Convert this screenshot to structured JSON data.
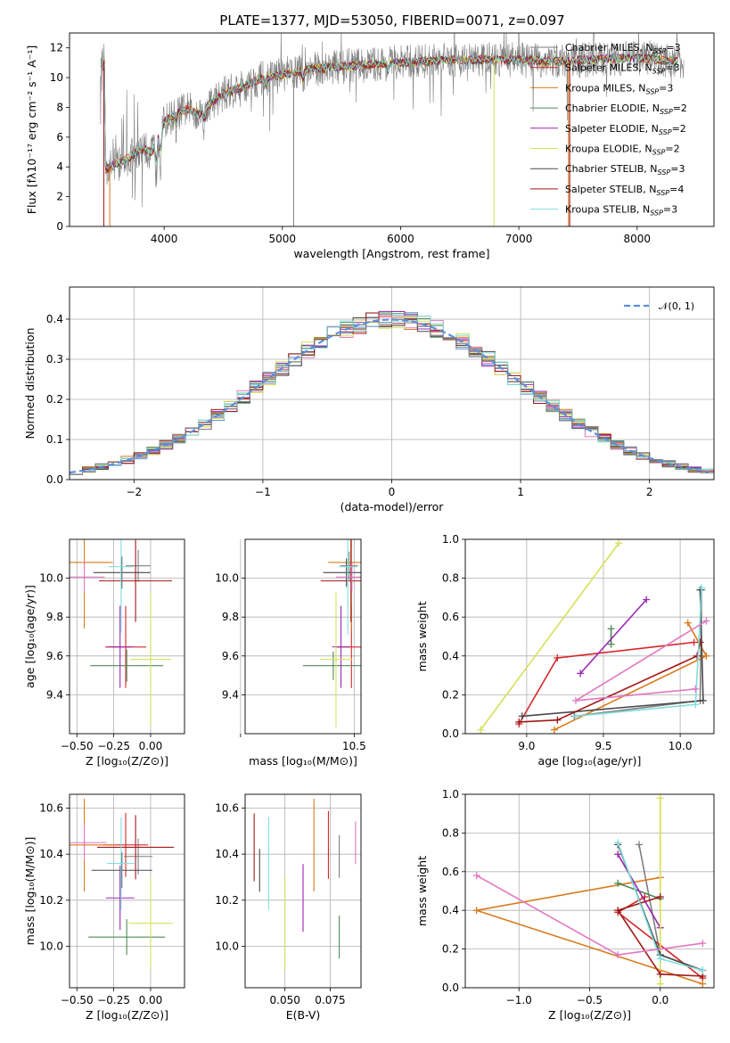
{
  "title": "PLATE=1377, MJD=53050, FIBERID=0071, z=0.097",
  "colors": {
    "chabrier_miles": "#7f7f7f",
    "salpeter_miles": "#d62728",
    "kroupa_miles": "#d97a1c",
    "chabrier_elodie": "#4f8a55",
    "salpeter_elodie": "#9a27b0",
    "kroupa_elodie": "#d4e157",
    "chabrier_stelib": "#4a4a4a",
    "salpeter_stelib": "#a01818",
    "kroupa_stelib": "#80dede",
    "normal": "#5b8fd9",
    "pink": "#e377c2",
    "grid": "#b0b0b0"
  },
  "chart_data": [
    {
      "id": "spectrum",
      "type": "line",
      "xlabel": "wavelength [Angstrom, rest frame]",
      "ylabel": "Flux [fλ10⁻¹⁷ erg cm⁻² s⁻¹ A⁻¹]",
      "xlim": [
        3200,
        8650
      ],
      "ylim": [
        0,
        13
      ],
      "xticks": [
        4000,
        5000,
        6000,
        7000,
        8000
      ],
      "yticks": [
        0,
        2,
        4,
        6,
        8,
        10,
        12
      ],
      "continuum": {
        "x": [
          3500,
          3600,
          3700,
          3800,
          3900,
          4000,
          4100,
          4200,
          4300,
          4400,
          4500,
          4600,
          4700,
          4800,
          4900,
          5000,
          5200,
          5400,
          5600,
          5800,
          6000,
          6200,
          6400,
          6600,
          6800,
          7000,
          7200,
          7400,
          7600,
          7800,
          8000,
          8200,
          8300
        ],
        "y": [
          3.8,
          4.2,
          4.6,
          5.2,
          5.0,
          7.0,
          7.6,
          7.9,
          7.6,
          8.3,
          8.9,
          9.2,
          9.5,
          9.9,
          10.0,
          10.2,
          10.5,
          10.7,
          10.8,
          10.9,
          11.0,
          11.1,
          11.2,
          11.2,
          11.2,
          11.2,
          11.1,
          11.1,
          11.2,
          11.3,
          11.3,
          11.2,
          11.1
        ]
      },
      "legend": [
        {
          "label": "Chabrier MILES, N",
          "sub": "SSP",
          "n": "=3",
          "color_key": "chabrier_miles"
        },
        {
          "label": "Salpeter MILES, N",
          "sub": "SSP",
          "n": "=3",
          "color_key": "salpeter_miles"
        },
        {
          "label": "Kroupa MILES, N",
          "sub": "SSP",
          "n": "=3",
          "color_key": "kroupa_miles"
        },
        {
          "label": "Chabrier ELODIE, N",
          "sub": "SSP",
          "n": "=2",
          "color_key": "chabrier_elodie"
        },
        {
          "label": "Salpeter ELODIE, N",
          "sub": "SSP",
          "n": "=2",
          "color_key": "salpeter_elodie"
        },
        {
          "label": "Kroupa ELODIE, N",
          "sub": "SSP",
          "n": "=2",
          "color_key": "kroupa_elodie"
        },
        {
          "label": "Chabrier STELIB, N",
          "sub": "SSP",
          "n": "=3",
          "color_key": "chabrier_stelib"
        },
        {
          "label": "Salpeter STELIB, N",
          "sub": "SSP",
          "n": "=4",
          "color_key": "salpeter_stelib"
        },
        {
          "label": "Kroupa STELIB, N",
          "sub": "SSP",
          "n": "=3",
          "color_key": "kroupa_stelib"
        }
      ]
    },
    {
      "id": "residuals",
      "type": "bar",
      "xlabel": "(data-model)/error",
      "ylabel": "Normed distribution",
      "xlim": [
        -2.5,
        2.5
      ],
      "ylim": [
        0,
        0.48
      ],
      "xticks": [
        -2,
        -1,
        0,
        1,
        2
      ],
      "yticks": [
        0.0,
        0.1,
        0.2,
        0.3,
        0.4
      ],
      "bin_width": 0.1,
      "legend_label": "𝒩(0, 1)",
      "normal": {
        "mean": 0,
        "sigma": 1
      }
    },
    {
      "id": "age-vs-z",
      "type": "scatter",
      "xlabel": "Z [log₁₀(Z/Z⊙)]",
      "ylabel": "age  [log₁₀(age/yr)]",
      "xlim": [
        -0.55,
        0.23
      ],
      "ylim": [
        9.2,
        10.2
      ],
      "xticks": [
        -0.5,
        -0.25,
        0.0
      ],
      "yticks": [
        9.4,
        9.6,
        9.8,
        10.0
      ]
    },
    {
      "id": "age-vs-mass",
      "type": "scatter",
      "xlabel": "mass [log₁₀(M/M⊙)]",
      "xlim": [
        8.1,
        10.65
      ],
      "ylim": [
        9.2,
        10.2
      ],
      "xticks": [
        8.0,
        10.5
      ],
      "xticklabels": [
        "",
        "10.5"
      ],
      "yticks": [
        9.4,
        9.6,
        9.8,
        10.0
      ]
    },
    {
      "id": "weight-vs-age",
      "type": "line",
      "xlabel": "age  [log₁₀(age/yr)]",
      "ylabel": "mass weight",
      "xlim": [
        8.6,
        10.22
      ],
      "ylim": [
        0,
        1
      ],
      "xticks": [
        9.0,
        9.5,
        10.0
      ],
      "yticks": [
        0.0,
        0.2,
        0.4,
        0.6,
        0.8,
        1.0
      ]
    },
    {
      "id": "mass-vs-z",
      "type": "scatter",
      "xlabel": "Z [log₁₀(Z/Z⊙)]",
      "ylabel": "mass [log₁₀(M/M⊙)]",
      "xlim": [
        -0.55,
        0.23
      ],
      "ylim": [
        9.82,
        10.66
      ],
      "xticks": [
        -0.5,
        -0.25,
        0.0
      ],
      "yticks": [
        10.0,
        10.2,
        10.4,
        10.6
      ]
    },
    {
      "id": "mass-vs-ebv",
      "type": "scatter",
      "xlabel": "E(B-V)",
      "xlim": [
        0.028,
        0.092
      ],
      "ylim": [
        9.82,
        10.66
      ],
      "xticks": [
        0.05,
        0.075
      ],
      "xticklabels": [
        "0.050",
        "0.075"
      ],
      "yticks": [
        10.0,
        10.2,
        10.4,
        10.6
      ]
    },
    {
      "id": "weight-vs-z",
      "type": "line",
      "xlabel": "Z [log₁₀(Z/Z⊙)]",
      "ylabel": "mass weight",
      "xlim": [
        -1.38,
        0.38
      ],
      "ylim": [
        0,
        1
      ],
      "xticks": [
        -1.0,
        -0.5,
        0.0
      ],
      "yticks": [
        0.0,
        0.2,
        0.4,
        0.6,
        0.8,
        1.0
      ]
    }
  ],
  "fits": [
    {
      "color_key": "chabrier_miles",
      "ebv": 0.08,
      "mass": 10.39,
      "ssp": [
        {
          "age": 10.14,
          "z": -0.15,
          "w": 0.74
        },
        {
          "age": 10.13,
          "z": 0.0,
          "w": 0.17
        },
        {
          "age": 9.31,
          "z": 0.3,
          "w": 0.09
        }
      ]
    },
    {
      "color_key": "salpeter_miles",
      "ebv": 0.074,
      "mass": 10.44,
      "ssp": [
        {
          "age": 10.09,
          "z": -0.11,
          "w": 0.47
        },
        {
          "age": 9.2,
          "z": -0.3,
          "w": 0.39
        },
        {
          "age": 8.95,
          "z": 0.3,
          "w": 0.05
        }
      ]
    },
    {
      "color_key": "kroupa_miles",
      "ebv": 0.066,
      "mass": 10.44,
      "ssp": [
        {
          "age": 10.05,
          "z": 0.0,
          "w": 0.57
        },
        {
          "age": 10.17,
          "z": -1.3,
          "w": 0.4
        },
        {
          "age": 9.18,
          "z": 0.3,
          "w": 0.02
        }
      ]
    },
    {
      "color_key": "chabrier_elodie",
      "ebv": 0.08,
      "mass": 10.04,
      "ssp": [
        {
          "age": 9.55,
          "z": -0.3,
          "w": 0.54
        },
        {
          "age": 9.55,
          "z": 0.0,
          "w": 0.46
        }
      ]
    },
    {
      "color_key": "salpeter_elodie",
      "ebv": 0.06,
      "mass": 10.21,
      "ssp": [
        {
          "age": 9.78,
          "z": -0.3,
          "w": 0.69
        },
        {
          "age": 9.35,
          "z": 0.0,
          "w": 0.31
        }
      ]
    },
    {
      "color_key": "kroupa_elodie",
      "ebv": 0.05,
      "mass": 10.1,
      "ssp": [
        {
          "age": 9.6,
          "z": 0.0,
          "w": 0.98
        },
        {
          "age": 8.7,
          "z": 0.0,
          "w": 0.02
        }
      ]
    },
    {
      "color_key": "chabrier_stelib",
      "ebv": 0.036,
      "mass": 10.33,
      "ssp": [
        {
          "age": 10.13,
          "z": -0.3,
          "w": 0.74
        },
        {
          "age": 10.15,
          "z": 0.0,
          "w": 0.17
        },
        {
          "age": 8.97,
          "z": 0.3,
          "w": 0.09
        }
      ]
    },
    {
      "color_key": "salpeter_stelib",
      "ebv": 0.033,
      "mass": 10.43,
      "ssp": [
        {
          "age": 10.13,
          "z": 0.0,
          "w": 0.47
        },
        {
          "age": 10.11,
          "z": -0.3,
          "w": 0.4
        },
        {
          "age": 9.2,
          "z": 0.0,
          "w": 0.07
        },
        {
          "age": 8.95,
          "z": 0.3,
          "w": 0.06
        }
      ]
    },
    {
      "color_key": "kroupa_stelib",
      "ebv": 0.041,
      "mass": 10.36,
      "ssp": [
        {
          "age": 10.14,
          "z": -0.3,
          "w": 0.75
        },
        {
          "age": 10.1,
          "z": 0.0,
          "w": 0.15
        },
        {
          "age": 9.32,
          "z": 0.3,
          "w": 0.09
        }
      ]
    },
    {
      "color_key": "pink",
      "ebv": 0.089,
      "mass": 10.45,
      "ssp": [
        {
          "age": 10.17,
          "z": -1.3,
          "w": 0.58
        },
        {
          "age": 9.32,
          "z": -0.3,
          "w": 0.17
        },
        {
          "age": 10.1,
          "z": 0.3,
          "w": 0.23
        }
      ]
    }
  ]
}
